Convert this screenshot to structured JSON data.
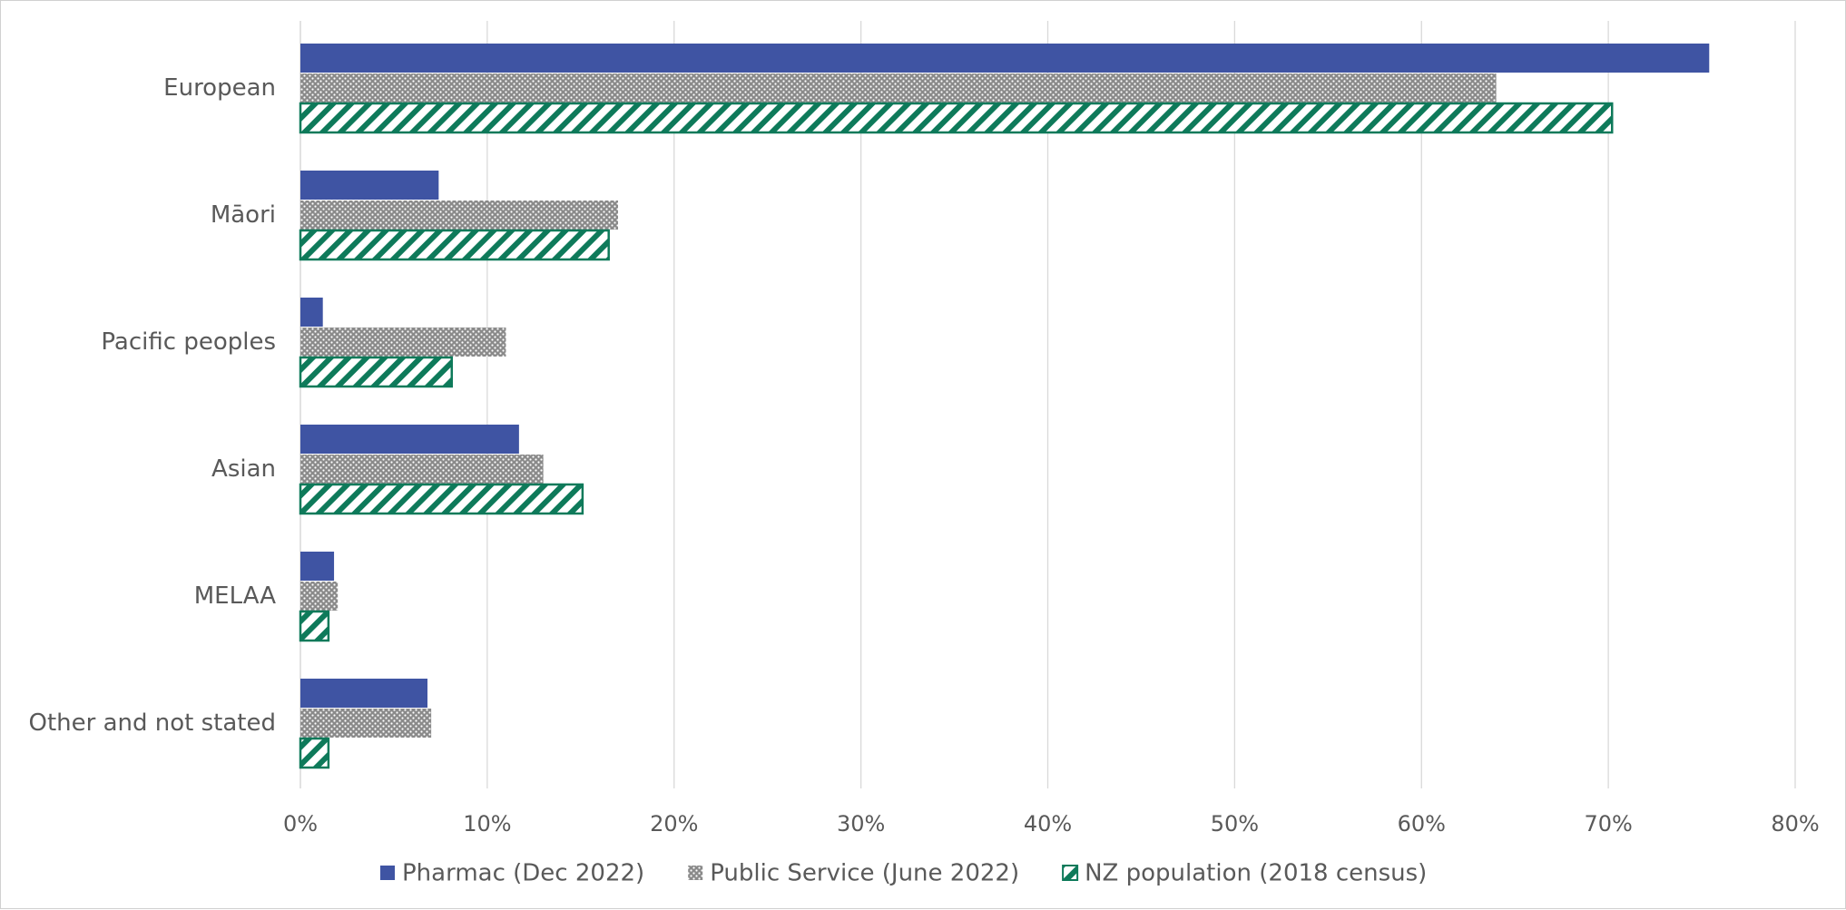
{
  "chart_data": {
    "type": "bar",
    "orientation": "horizontal",
    "categories": [
      "European",
      "Māori",
      "Pacific peoples",
      "Asian",
      "MELAA",
      "Other and not stated"
    ],
    "series": [
      {
        "name": "Pharmac (Dec 2022)",
        "color": "#3f54a3",
        "pattern": "solid",
        "values": [
          75.4,
          7.4,
          1.2,
          11.7,
          1.8,
          6.8
        ]
      },
      {
        "name": "Public Service (June 2022)",
        "color": "#8a8a8a",
        "pattern": "dots",
        "values": [
          64.0,
          17.0,
          11.0,
          13.0,
          2.0,
          7.0
        ]
      },
      {
        "name": "NZ population (2018 census)",
        "color": "#0e7a5a",
        "pattern": "diagonal-stripes",
        "values": [
          70.2,
          16.5,
          8.1,
          15.1,
          1.5,
          1.5
        ]
      }
    ],
    "xlim": [
      0,
      80
    ],
    "xticks": [
      "0%",
      "10%",
      "20%",
      "30%",
      "40%",
      "50%",
      "60%",
      "70%",
      "80%"
    ],
    "xtick_values": [
      0,
      10,
      20,
      30,
      40,
      50,
      60,
      70,
      80
    ],
    "grid": true,
    "legend_position": "bottom",
    "title": "",
    "xlabel": "",
    "ylabel": ""
  }
}
